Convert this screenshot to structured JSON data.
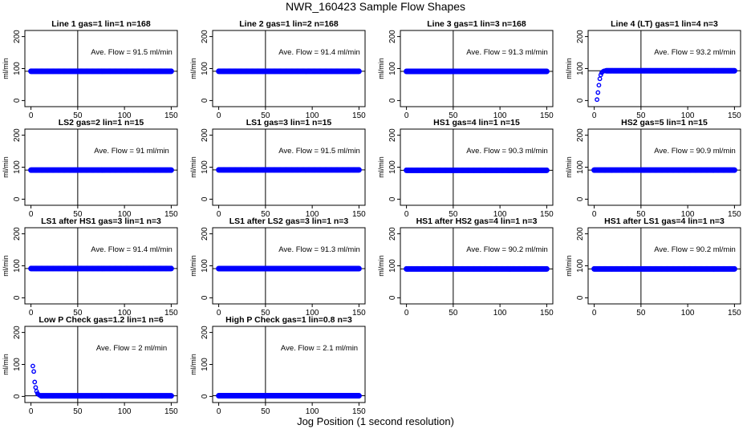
{
  "figure": {
    "title": "NWR_160423  Sample Flow Shapes",
    "xlabel": "Jog Position (1 second resolution)"
  },
  "colors": {
    "points": "#0000ff",
    "axes": "#000000"
  },
  "chart_data": [
    {
      "type": "scatter",
      "title": "Line 1 gas=1 lin=1 n=168",
      "ylabel": "ml/min",
      "annotation": "Ave. Flow = 91.5  ml/min",
      "xlim": [
        0,
        150
      ],
      "ylim": [
        0,
        200
      ],
      "xticks": [
        0,
        50,
        100,
        150
      ],
      "yticks": [
        0,
        100,
        200
      ],
      "vline": 50,
      "hline": 91.5,
      "series": [
        {
          "x_range": [
            0,
            150
          ],
          "values": [
            91.5
          ]
        }
      ]
    },
    {
      "type": "scatter",
      "title": "Line 2 gas=1 lin=2 n=168",
      "ylabel": "ml/min",
      "annotation": "Ave. Flow = 91.4  ml/min",
      "xlim": [
        0,
        150
      ],
      "ylim": [
        0,
        200
      ],
      "xticks": [
        0,
        50,
        100,
        150
      ],
      "yticks": [
        0,
        100,
        200
      ],
      "vline": 50,
      "hline": 91.4,
      "series": [
        {
          "x_range": [
            0,
            150
          ],
          "values": [
            91.4
          ]
        }
      ]
    },
    {
      "type": "scatter",
      "title": "Line 3 gas=1 lin=3 n=168",
      "ylabel": "ml/min",
      "annotation": "Ave. Flow = 91.3  ml/min",
      "xlim": [
        0,
        150
      ],
      "ylim": [
        0,
        200
      ],
      "xticks": [
        0,
        50,
        100,
        150
      ],
      "yticks": [
        0,
        100,
        200
      ],
      "vline": 50,
      "hline": 91.3,
      "series": [
        {
          "x_range": [
            0,
            150
          ],
          "values": [
            91.3
          ]
        }
      ]
    },
    {
      "type": "scatter",
      "title": "Line 4 (LT) gas=1 lin=4 n=3",
      "ylabel": "ml/min",
      "annotation": "Ave. Flow = 93.2  ml/min",
      "xlim": [
        0,
        150
      ],
      "ylim": [
        0,
        200
      ],
      "xticks": [
        0,
        50,
        100,
        150
      ],
      "yticks": [
        0,
        100,
        200
      ],
      "vline": 50,
      "hline": 93.2,
      "series": [
        {
          "x_range": [
            0,
            150
          ],
          "values": [
            93.2
          ],
          "early": [
            [
              3,
              3
            ],
            [
              4,
              25
            ],
            [
              5,
              48
            ],
            [
              6,
              68
            ],
            [
              7,
              80
            ],
            [
              8,
              87
            ],
            [
              9,
              90
            ],
            [
              10,
              92
            ],
            [
              11,
              93
            ],
            [
              12,
              93
            ]
          ]
        }
      ]
    },
    {
      "type": "scatter",
      "title": "LS2 gas=2 lin=1 n=15",
      "ylabel": "ml/min",
      "annotation": "Ave. Flow = 91  ml/min",
      "xlim": [
        0,
        150
      ],
      "ylim": [
        0,
        200
      ],
      "xticks": [
        0,
        50,
        100,
        150
      ],
      "yticks": [
        0,
        100,
        200
      ],
      "vline": 50,
      "hline": 91,
      "series": [
        {
          "x_range": [
            0,
            150
          ],
          "values": [
            91
          ]
        }
      ]
    },
    {
      "type": "scatter",
      "title": "LS1 gas=3 lin=1 n=15",
      "ylabel": "ml/min",
      "annotation": "Ave. Flow = 91.5  ml/min",
      "xlim": [
        0,
        150
      ],
      "ylim": [
        0,
        200
      ],
      "xticks": [
        0,
        50,
        100,
        150
      ],
      "yticks": [
        0,
        100,
        200
      ],
      "vline": 50,
      "hline": 91.5,
      "series": [
        {
          "x_range": [
            0,
            150
          ],
          "values": [
            91.5
          ]
        }
      ]
    },
    {
      "type": "scatter",
      "title": "HS1 gas=4 lin=1 n=15",
      "ylabel": "ml/min",
      "annotation": "Ave. Flow = 90.3  ml/min",
      "xlim": [
        0,
        150
      ],
      "ylim": [
        0,
        200
      ],
      "xticks": [
        0,
        50,
        100,
        150
      ],
      "yticks": [
        0,
        100,
        200
      ],
      "vline": 50,
      "hline": 90.3,
      "series": [
        {
          "x_range": [
            0,
            150
          ],
          "values": [
            90.3
          ]
        }
      ]
    },
    {
      "type": "scatter",
      "title": "HS2 gas=5 lin=1 n=15",
      "ylabel": "ml/min",
      "annotation": "Ave. Flow = 90.9  ml/min",
      "xlim": [
        0,
        150
      ],
      "ylim": [
        0,
        200
      ],
      "xticks": [
        0,
        50,
        100,
        150
      ],
      "yticks": [
        0,
        100,
        200
      ],
      "vline": 50,
      "hline": 90.9,
      "series": [
        {
          "x_range": [
            0,
            150
          ],
          "values": [
            90.9
          ]
        }
      ]
    },
    {
      "type": "scatter",
      "title": "LS1 after HS1 gas=3 lin=1 n=3",
      "ylabel": "ml/min",
      "annotation": "Ave. Flow = 91.4  ml/min",
      "xlim": [
        0,
        150
      ],
      "ylim": [
        0,
        200
      ],
      "xticks": [
        0,
        50,
        100,
        150
      ],
      "yticks": [
        0,
        100,
        200
      ],
      "vline": 50,
      "hline": 91.4,
      "series": [
        {
          "x_range": [
            0,
            150
          ],
          "values": [
            91.4
          ]
        }
      ]
    },
    {
      "type": "scatter",
      "title": "LS1 after LS2 gas=3 lin=1 n=3",
      "ylabel": "ml/min",
      "annotation": "Ave. Flow = 91.3  ml/min",
      "xlim": [
        0,
        150
      ],
      "ylim": [
        0,
        200
      ],
      "xticks": [
        0,
        50,
        100,
        150
      ],
      "yticks": [
        0,
        100,
        200
      ],
      "vline": 50,
      "hline": 91.3,
      "series": [
        {
          "x_range": [
            0,
            150
          ],
          "values": [
            91.3
          ]
        }
      ]
    },
    {
      "type": "scatter",
      "title": "HS1 after HS2 gas=4 lin=1 n=3",
      "ylabel": "ml/min",
      "annotation": "Ave. Flow = 90.2  ml/min",
      "xlim": [
        0,
        150
      ],
      "ylim": [
        0,
        200
      ],
      "xticks": [
        0,
        50,
        100,
        150
      ],
      "yticks": [
        0,
        100,
        200
      ],
      "vline": 50,
      "hline": 90.2,
      "series": [
        {
          "x_range": [
            0,
            150
          ],
          "values": [
            90.2
          ]
        }
      ]
    },
    {
      "type": "scatter",
      "title": "HS1 after LS1 gas=4 lin=1 n=3",
      "ylabel": "ml/min",
      "annotation": "Ave. Flow = 90.2  ml/min",
      "xlim": [
        0,
        150
      ],
      "ylim": [
        0,
        200
      ],
      "xticks": [
        0,
        50,
        100,
        150
      ],
      "yticks": [
        0,
        100,
        200
      ],
      "vline": 50,
      "hline": 90.2,
      "series": [
        {
          "x_range": [
            0,
            150
          ],
          "values": [
            90.2
          ]
        }
      ]
    },
    {
      "type": "scatter",
      "title": "Low P Check gas=1.2 lin=1 n=6",
      "ylabel": "ml/min",
      "annotation": "Ave. Flow = 2  ml/min",
      "xlim": [
        0,
        150
      ],
      "ylim": [
        0,
        200
      ],
      "xticks": [
        0,
        50,
        100,
        150
      ],
      "yticks": [
        0,
        100,
        200
      ],
      "vline": 50,
      "hline": 2,
      "series": [
        {
          "x_range": [
            0,
            150
          ],
          "values": [
            2
          ],
          "early": [
            [
              2,
              95
            ],
            [
              3,
              78
            ],
            [
              4,
              45
            ],
            [
              5,
              28
            ],
            [
              6,
              16
            ],
            [
              7,
              9
            ],
            [
              8,
              6
            ],
            [
              9,
              4
            ],
            [
              10,
              3
            ]
          ]
        }
      ]
    },
    {
      "type": "scatter",
      "title": "High P Check gas=1 lin=0.8 n=3",
      "ylabel": "ml/min",
      "annotation": "Ave. Flow = 2.1  ml/min",
      "xlim": [
        0,
        150
      ],
      "ylim": [
        0,
        200
      ],
      "xticks": [
        0,
        50,
        100,
        150
      ],
      "yticks": [
        0,
        100,
        200
      ],
      "vline": 50,
      "hline": 2.1,
      "series": [
        {
          "x_range": [
            0,
            150
          ],
          "values": [
            2.1
          ]
        }
      ]
    }
  ]
}
